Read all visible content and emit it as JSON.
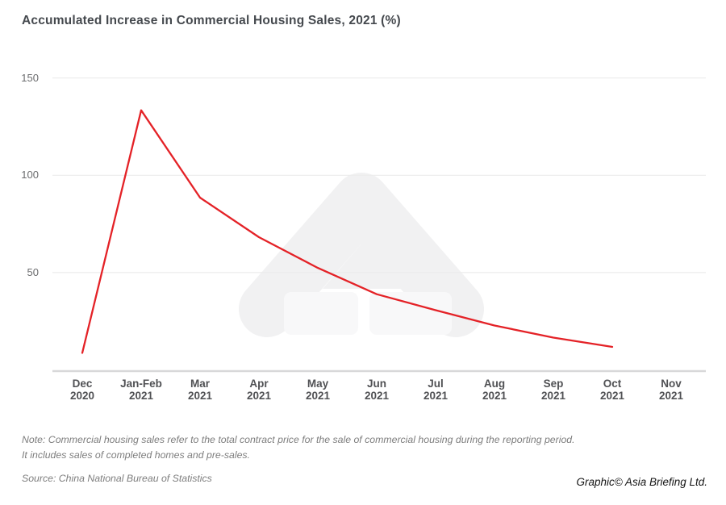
{
  "title": "Accumulated Increase in Commercial Housing Sales, 2021 (%)",
  "chart_data": {
    "type": "line",
    "title": "Accumulated Increase in Commercial Housing Sales, 2021 (%)",
    "categories": [
      "Dec 2020",
      "Jan-Feb 2021",
      "Mar 2021",
      "Apr 2021",
      "May 2021",
      "Jun 2021",
      "Jul 2021",
      "Aug 2021",
      "Sep 2021",
      "Oct 2021",
      "Nov 2021"
    ],
    "series": [
      {
        "name": "Accumulated increase in commercial housing sales (%)",
        "values": [
          8.7,
          133.4,
          88.5,
          68.2,
          52.4,
          38.9,
          30.7,
          22.8,
          16.6,
          11.8,
          null
        ]
      }
    ],
    "xlabel": "",
    "ylabel": "",
    "ylim": [
      0,
      150
    ],
    "yticks": [
      50,
      100,
      150
    ],
    "grid": "horizontal gridlines only",
    "legend": "none",
    "line_color": "#e42227"
  },
  "notes": {
    "line1": "Note: Commercial housing sales refer to the total contract price for the sale of commercial housing during the reporting period.",
    "line2": "It includes sales of completed homes and pre-sales."
  },
  "source": "Source: China National Bureau of Statistics",
  "credit": "Graphic© Asia Briefing Ltd.",
  "colors": {
    "line": "#e42227",
    "title_text": "#45494e",
    "axis_text": "#505154",
    "ytick_text": "#6b6c6e",
    "gridline": "#ececec",
    "axis_line": "#d8d8d9",
    "note_text": "#7d7d7d",
    "credit_text": "#141414",
    "watermark": "#f1f1f2",
    "watermark_light": "#f8f8f9"
  }
}
